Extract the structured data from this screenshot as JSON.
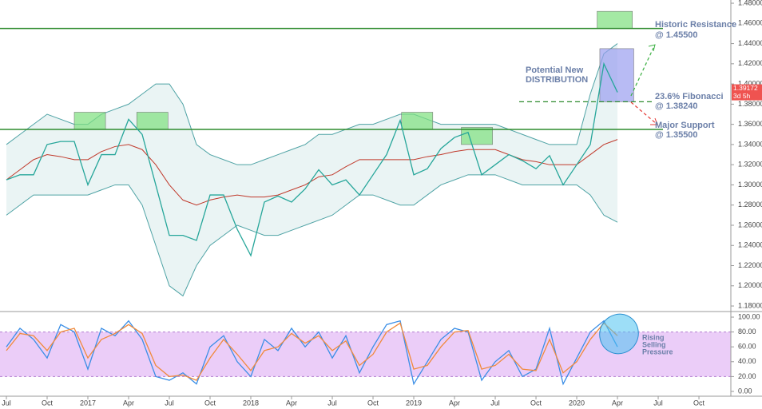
{
  "chart_data": [
    {
      "type": "line",
      "x": [
        0,
        1,
        2,
        3,
        4,
        5,
        6,
        7,
        8,
        9,
        10,
        11,
        12,
        13,
        14,
        15,
        16,
        17,
        18,
        19,
        20,
        21,
        22,
        23,
        24,
        25,
        26,
        27,
        28,
        29,
        30,
        31,
        32,
        33,
        34,
        35,
        36,
        37,
        38,
        39,
        40,
        41,
        42,
        43,
        44,
        45
      ],
      "xlim": [
        -0.47,
        53.35
      ],
      "xticks": [
        {
          "value": 0,
          "label": "Jul"
        },
        {
          "value": 3,
          "label": "Oct"
        },
        {
          "value": 6,
          "label": "2017"
        },
        {
          "value": 9,
          "label": "Apr"
        },
        {
          "value": 12,
          "label": "Jul"
        },
        {
          "value": 15,
          "label": "Oct"
        },
        {
          "value": 18,
          "label": "2018"
        },
        {
          "value": 21,
          "label": "Apr"
        },
        {
          "value": 24,
          "label": "Jul"
        },
        {
          "value": 27,
          "label": "Oct"
        },
        {
          "value": 30,
          "label": "2019"
        },
        {
          "value": 33,
          "label": "Apr"
        },
        {
          "value": 36,
          "label": "Jul"
        },
        {
          "value": 39,
          "label": "Oct"
        },
        {
          "value": 42,
          "label": "2020"
        },
        {
          "value": 45,
          "label": "Apr"
        },
        {
          "value": 48,
          "label": "Jul"
        },
        {
          "value": 51,
          "label": "Oct"
        }
      ],
      "ylim": [
        1.1745,
        1.4832
      ],
      "yticks": [
        {
          "value": 1.18,
          "label": "1.18000"
        },
        {
          "value": 1.2,
          "label": "1.20000"
        },
        {
          "value": 1.22,
          "label": "1.22000"
        },
        {
          "value": 1.24,
          "label": "1.24000"
        },
        {
          "value": 1.26,
          "label": "1.26000"
        },
        {
          "value": 1.28,
          "label": "1.28000"
        },
        {
          "value": 1.3,
          "label": "1.30000"
        },
        {
          "value": 1.32,
          "label": "1.32000"
        },
        {
          "value": 1.34,
          "label": "1.34000"
        },
        {
          "value": 1.36,
          "label": "1.36000"
        },
        {
          "value": 1.38,
          "label": "1.38000"
        },
        {
          "value": 1.4,
          "label": "1.40000"
        },
        {
          "value": 1.42,
          "label": "1.42000"
        },
        {
          "value": 1.44,
          "label": "1.44000"
        },
        {
          "value": 1.46,
          "label": "1.46000"
        },
        {
          "value": 1.48,
          "label": "1.48000"
        }
      ],
      "series": [
        {
          "color": "#26a69a",
          "values": [
            1.305,
            1.31,
            1.31,
            1.34,
            1.343,
            1.343,
            1.3,
            1.33,
            1.33,
            1.365,
            1.35,
            1.3,
            1.25,
            1.25,
            1.245,
            1.29,
            1.29,
            1.256,
            1.23,
            1.283,
            1.289,
            1.283,
            1.296,
            1.315,
            1.3,
            1.305,
            1.29,
            1.31,
            1.33,
            1.364,
            1.31,
            1.316,
            1.336,
            1.347,
            1.352,
            1.31,
            1.32,
            1.33,
            1.324,
            1.316,
            1.329,
            1.3,
            1.32,
            1.34,
            1.42,
            1.39172
          ]
        }
      ],
      "bollinger": {
        "color": "#4fa3a5",
        "basis_color": "#c0392b",
        "upper": [
          1.34,
          1.35,
          1.36,
          1.37,
          1.365,
          1.36,
          1.36,
          1.37,
          1.375,
          1.38,
          1.39,
          1.4,
          1.4,
          1.38,
          1.34,
          1.33,
          1.325,
          1.32,
          1.32,
          1.325,
          1.33,
          1.335,
          1.34,
          1.35,
          1.35,
          1.355,
          1.36,
          1.36,
          1.365,
          1.37,
          1.37,
          1.365,
          1.36,
          1.36,
          1.36,
          1.36,
          1.36,
          1.355,
          1.35,
          1.345,
          1.34,
          1.34,
          1.34,
          1.39,
          1.43,
          1.44
        ],
        "lower": [
          1.27,
          1.28,
          1.29,
          1.29,
          1.29,
          1.29,
          1.29,
          1.295,
          1.3,
          1.3,
          1.28,
          1.24,
          1.2,
          1.19,
          1.22,
          1.24,
          1.25,
          1.26,
          1.255,
          1.25,
          1.25,
          1.255,
          1.26,
          1.265,
          1.27,
          1.28,
          1.29,
          1.29,
          1.285,
          1.28,
          1.28,
          1.29,
          1.3,
          1.305,
          1.31,
          1.31,
          1.31,
          1.305,
          1.3,
          1.3,
          1.3,
          1.3,
          1.3,
          1.29,
          1.27,
          1.263
        ],
        "basis": [
          1.305,
          1.315,
          1.325,
          1.33,
          1.328,
          1.325,
          1.325,
          1.333,
          1.338,
          1.34,
          1.335,
          1.32,
          1.3,
          1.285,
          1.28,
          1.285,
          1.288,
          1.29,
          1.288,
          1.288,
          1.29,
          1.295,
          1.3,
          1.308,
          1.31,
          1.318,
          1.325,
          1.325,
          1.325,
          1.325,
          1.325,
          1.328,
          1.33,
          1.333,
          1.335,
          1.335,
          1.335,
          1.33,
          1.325,
          1.323,
          1.32,
          1.32,
          1.32,
          1.33,
          1.34,
          1.345
        ]
      },
      "levels": [
        {
          "value": 1.455,
          "color": "#2e8b2e",
          "style": "solid"
        },
        {
          "value": 1.3824,
          "color": "#2e8b2e",
          "style": "dashed"
        },
        {
          "value": 1.355,
          "color": "#2e8b2e",
          "style": "solid"
        }
      ],
      "zones": [
        {
          "x": [
            5,
            7.3
          ],
          "y": [
            1.355,
            1.372
          ],
          "color": "#7ee07e"
        },
        {
          "x": [
            9.6,
            11.9
          ],
          "y": [
            1.355,
            1.372
          ],
          "color": "#7ee07e"
        },
        {
          "x": [
            29.1,
            31.4
          ],
          "y": [
            1.355,
            1.372
          ],
          "color": "#7ee07e"
        },
        {
          "x": [
            33.5,
            35.8
          ],
          "y": [
            1.34,
            1.357
          ],
          "color": "#7ee07e"
        },
        {
          "x": [
            43.5,
            46.1
          ],
          "y": [
            1.455,
            1.472
          ],
          "color": "#7ee07e"
        },
        {
          "x": [
            43.7,
            46.2
          ],
          "y": [
            1.3824,
            1.435
          ],
          "color": "#9a9ef0"
        }
      ],
      "annotations": [
        [
          "Historic Resistance",
          "@ 1.45500"
        ],
        [
          "Potential New",
          "DISTRIBUTION"
        ],
        [
          "23.6% Fibonacci",
          "@ 1.38240"
        ],
        [
          "Major Support",
          "@ 1.35500"
        ]
      ],
      "last_price": {
        "value": 1.39172,
        "countdown": "3d 5h",
        "color": "#ef5350"
      }
    },
    {
      "type": "line",
      "ylim": [
        -5.4,
        105.4
      ],
      "yticks": [
        {
          "value": 0,
          "label": "0.00"
        },
        {
          "value": 20,
          "label": "20.00"
        },
        {
          "value": 40,
          "label": "40.00"
        },
        {
          "value": 60,
          "label": "60.00"
        },
        {
          "value": 80,
          "label": "80.00"
        },
        {
          "value": 100,
          "label": "100.00"
        }
      ],
      "band": [
        20,
        80
      ],
      "band_color": "#e3b8f5",
      "series": [
        {
          "color": "#3a8ee6",
          "values": [
            60,
            85,
            70,
            45,
            90,
            80,
            30,
            85,
            75,
            95,
            70,
            20,
            15,
            25,
            10,
            60,
            75,
            40,
            20,
            70,
            55,
            85,
            60,
            80,
            45,
            75,
            25,
            60,
            90,
            95,
            10,
            40,
            70,
            85,
            80,
            15,
            40,
            55,
            20,
            30,
            85,
            10,
            45,
            80,
            95,
            60
          ]
        },
        {
          "color": "#f08a3c",
          "values": [
            55,
            78,
            75,
            55,
            80,
            85,
            45,
            70,
            78,
            90,
            78,
            35,
            20,
            22,
            15,
            45,
            70,
            50,
            28,
            55,
            60,
            78,
            65,
            75,
            55,
            68,
            35,
            50,
            80,
            92,
            30,
            35,
            60,
            80,
            82,
            30,
            35,
            50,
            30,
            28,
            70,
            25,
            40,
            70,
            92,
            75
          ]
        }
      ],
      "annotation": [
        "Rising",
        "Selling",
        "Pressure"
      ]
    }
  ]
}
